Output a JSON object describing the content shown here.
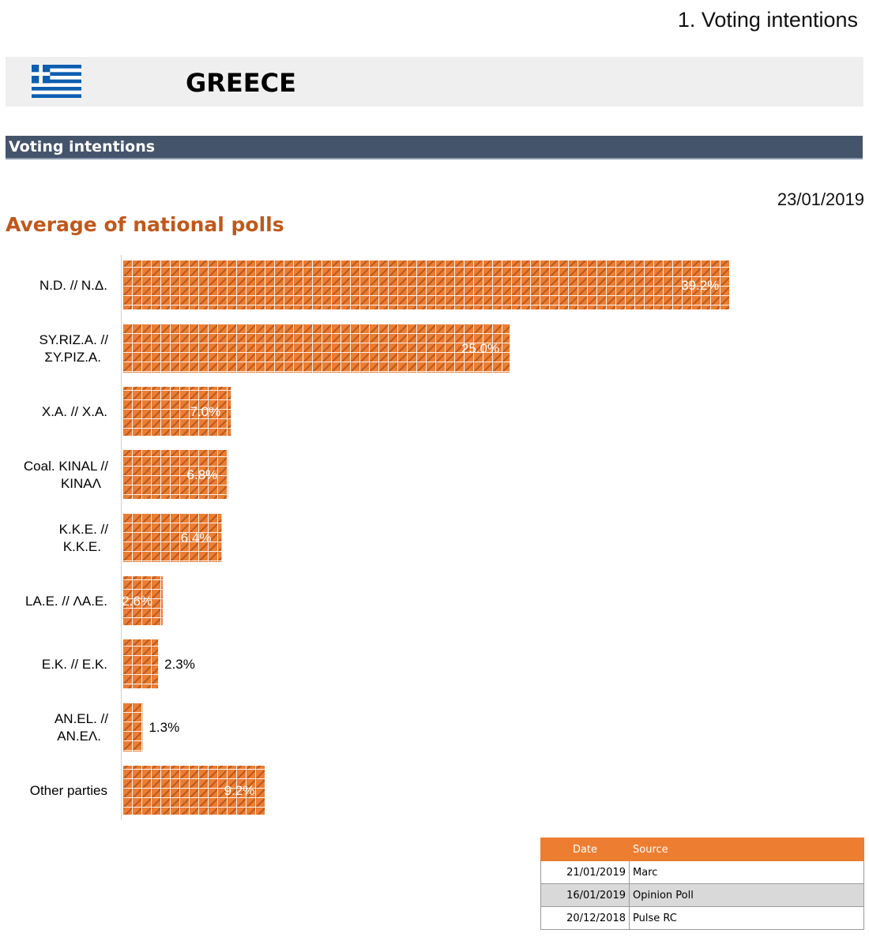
{
  "page_heading": "1. Voting intentions",
  "country": {
    "name": "GREECE",
    "flag_icon": "greek-flag-icon"
  },
  "section_title": "Voting intentions",
  "report_date": "23/01/2019",
  "chart_data": {
    "type": "bar",
    "orientation": "horizontal",
    "title": "Average of national polls",
    "categories": [
      "N.D. // Ν.Δ.",
      "SY.RIZ.A. // ΣΥ.ΡΙΖ.Α.",
      "X.A. // Χ.Α.",
      "Coal. KINAL // ΚΙΝΑΛ",
      "K.K.E. // Κ.Κ.Ε.",
      "LA.E. // ΛΑ.Ε.",
      "E.K. // Ε.Κ.",
      "AN.EL. // ΑΝ.ΕΛ.",
      "Other parties"
    ],
    "values": [
      39.2,
      25.0,
      7.0,
      6.8,
      6.4,
      2.6,
      2.3,
      1.3,
      9.2
    ],
    "value_labels": [
      "39.2%",
      "25.0%",
      "7.0%",
      "6.8%",
      "6.4%",
      "2.6%",
      "2.3%",
      "1.3%",
      "9.2%"
    ],
    "xlim": [
      0,
      40
    ],
    "bar_color": "#ed7d31",
    "pattern": "hatched-grid",
    "grid": false,
    "legend": "none"
  },
  "sources_table": {
    "headers": [
      "Date",
      "Source"
    ],
    "rows": [
      [
        "21/01/2019",
        "Marc"
      ],
      [
        "16/01/2019",
        "Opinion Poll"
      ],
      [
        "20/12/2018",
        "Pulse RC"
      ]
    ],
    "header_color": "#ed7d31"
  }
}
